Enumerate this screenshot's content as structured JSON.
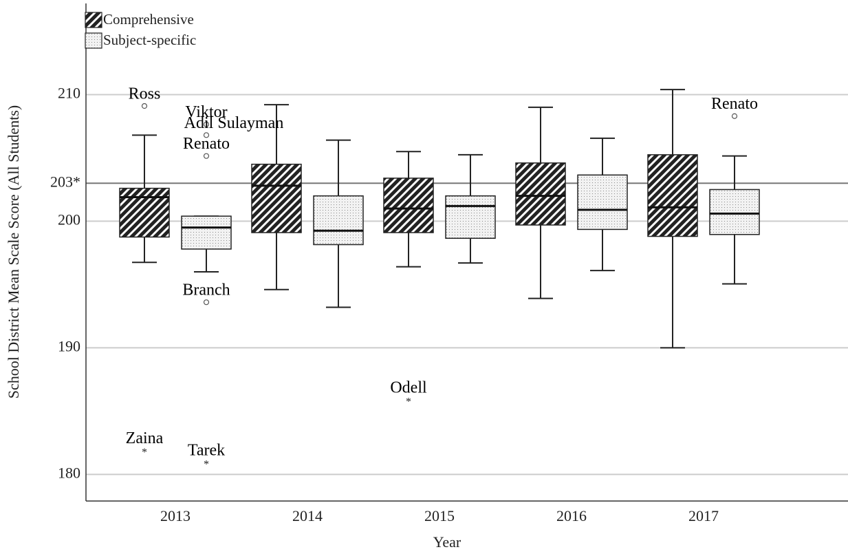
{
  "chart_data": {
    "type": "box",
    "x_label": "Year",
    "y_label": "School District Mean Scale Score (All Students)",
    "categories": [
      "2013",
      "2014",
      "2015",
      "2016",
      "2017"
    ],
    "ylim": [
      177.9,
      217.2
    ],
    "yticks": [
      180,
      190,
      200,
      {
        "value": 203,
        "label": "203*"
      },
      210
    ],
    "grid": true,
    "legend": "top-left",
    "series": [
      {
        "name": "Comprehensive",
        "color": "#222222",
        "pattern": "hatch",
        "values": [
          {
            "min": 196.75,
            "q1": 198.75,
            "median": 201.9,
            "q3": 202.6,
            "max": 206.8,
            "outliers": [
              {
                "label": "Ross",
                "value": 209.1,
                "marker": "circle"
              },
              {
                "label": "Zaina",
                "value": 181.9,
                "marker": "star"
              }
            ]
          },
          {
            "min": 194.6,
            "q1": 199.1,
            "median": 202.8,
            "q3": 204.5,
            "max": 209.2,
            "outliers": []
          },
          {
            "min": 196.4,
            "q1": 199.1,
            "median": 201.0,
            "q3": 203.4,
            "max": 205.5,
            "outliers": [
              {
                "label": "Odell",
                "value": 185.9,
                "marker": "star"
              }
            ]
          },
          {
            "min": 193.9,
            "q1": 199.7,
            "median": 202.0,
            "q3": 204.6,
            "max": 209.0,
            "outliers": []
          },
          {
            "min": 190.0,
            "q1": 198.8,
            "median": 201.1,
            "q3": 205.25,
            "max": 210.4,
            "outliers": []
          }
        ]
      },
      {
        "name": "Subject-specific",
        "color": "#999999",
        "pattern": "dots",
        "values": [
          {
            "min": 196.0,
            "q1": 197.8,
            "median": 199.5,
            "q3": 200.4,
            "max": 200.4,
            "outliers": [
              {
                "label": "Viktor",
                "value": 207.65,
                "marker": "circle"
              },
              {
                "label": "Adil Sulayman",
                "value": 206.8,
                "marker": "circle"
              },
              {
                "label": "Renato",
                "value": 205.15,
                "marker": "circle"
              },
              {
                "label": "Branch",
                "value": 193.6,
                "marker": "circle"
              },
              {
                "label": "Tarek",
                "value": 180.95,
                "marker": "star"
              }
            ]
          },
          {
            "min": 193.2,
            "q1": 198.15,
            "median": 199.25,
            "q3": 202.0,
            "max": 206.4,
            "outliers": []
          },
          {
            "min": 196.7,
            "q1": 198.65,
            "median": 201.2,
            "q3": 202.0,
            "max": 205.25,
            "outliers": []
          },
          {
            "min": 196.1,
            "q1": 199.35,
            "median": 200.9,
            "q3": 203.65,
            "max": 206.55,
            "outliers": []
          },
          {
            "min": 195.05,
            "q1": 198.95,
            "median": 200.6,
            "q3": 202.5,
            "max": 205.15,
            "outliers": [
              {
                "label": "Renato",
                "value": 208.3,
                "marker": "circle"
              }
            ]
          }
        ]
      }
    ]
  }
}
